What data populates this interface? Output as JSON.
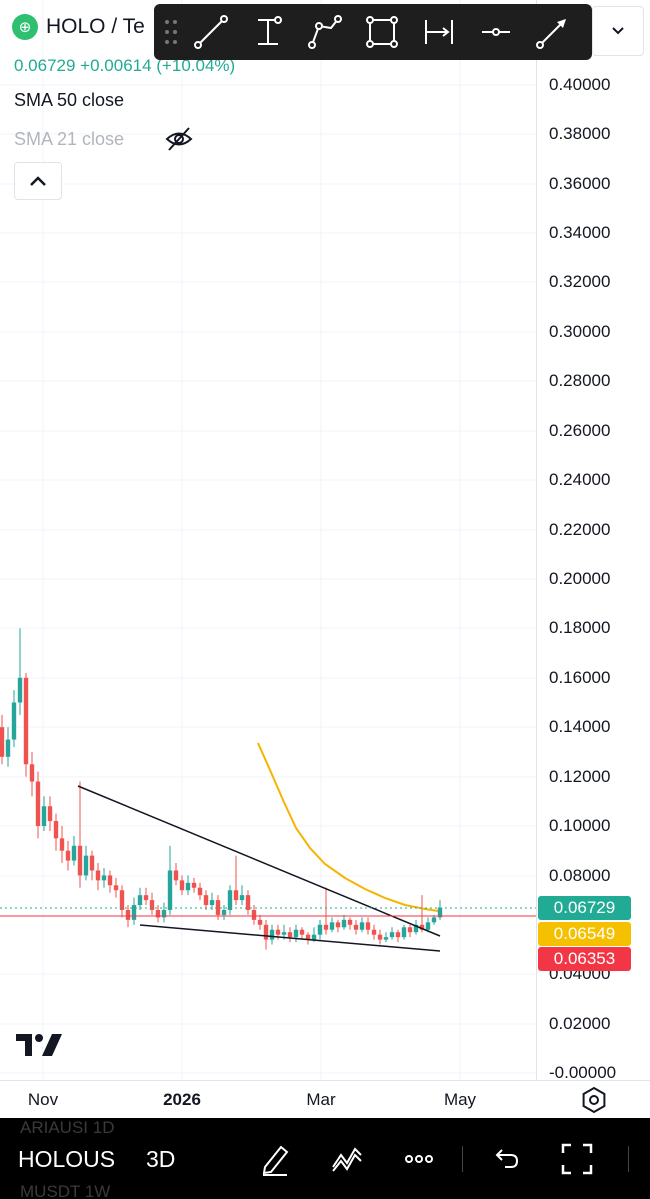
{
  "header": {
    "symbol": "HOLO / Te",
    "price_line": "0.06729 +0.00614 (+10.04%)",
    "indicators": [
      {
        "label": "SMA 50 close",
        "visible": true
      },
      {
        "label": "SMA 21 close",
        "visible": false
      }
    ]
  },
  "toolbar": {
    "tools": [
      "trend-line-icon",
      "vertical-range-icon",
      "path-icon",
      "rectangle-icon",
      "date-range-icon",
      "horizontal-ray-icon",
      "arrow-icon"
    ]
  },
  "price_axis": {
    "ticks": [
      "0.40000",
      "0.38000",
      "0.36000",
      "0.34000",
      "0.32000",
      "0.30000",
      "0.28000",
      "0.26000",
      "0.24000",
      "0.22000",
      "0.20000",
      "0.18000",
      "0.16000",
      "0.14000",
      "0.12000",
      "0.10000",
      "0.08000",
      "0.04000",
      "0.02000",
      "-0.00000"
    ],
    "labels": [
      {
        "value": "0.06729",
        "color": "#22ab94"
      },
      {
        "value": "0.06549",
        "color": "#f5c000"
      },
      {
        "value": "0.06353",
        "color": "#f23645"
      }
    ]
  },
  "time_axis": {
    "ticks": [
      {
        "label": "Nov",
        "bold": false
      },
      {
        "label": "2026",
        "bold": true
      },
      {
        "label": "Mar",
        "bold": false
      },
      {
        "label": "May",
        "bold": false
      }
    ]
  },
  "bottom_bar": {
    "ghost_top": "ARIAUSI   1D",
    "symbol": "HOLOUS",
    "mode": "3D",
    "ghost_bottom": "MUSDT   1W"
  },
  "colors": {
    "up": "#26a69a",
    "down": "#ef5350",
    "sma50": "#f5b400"
  }
}
